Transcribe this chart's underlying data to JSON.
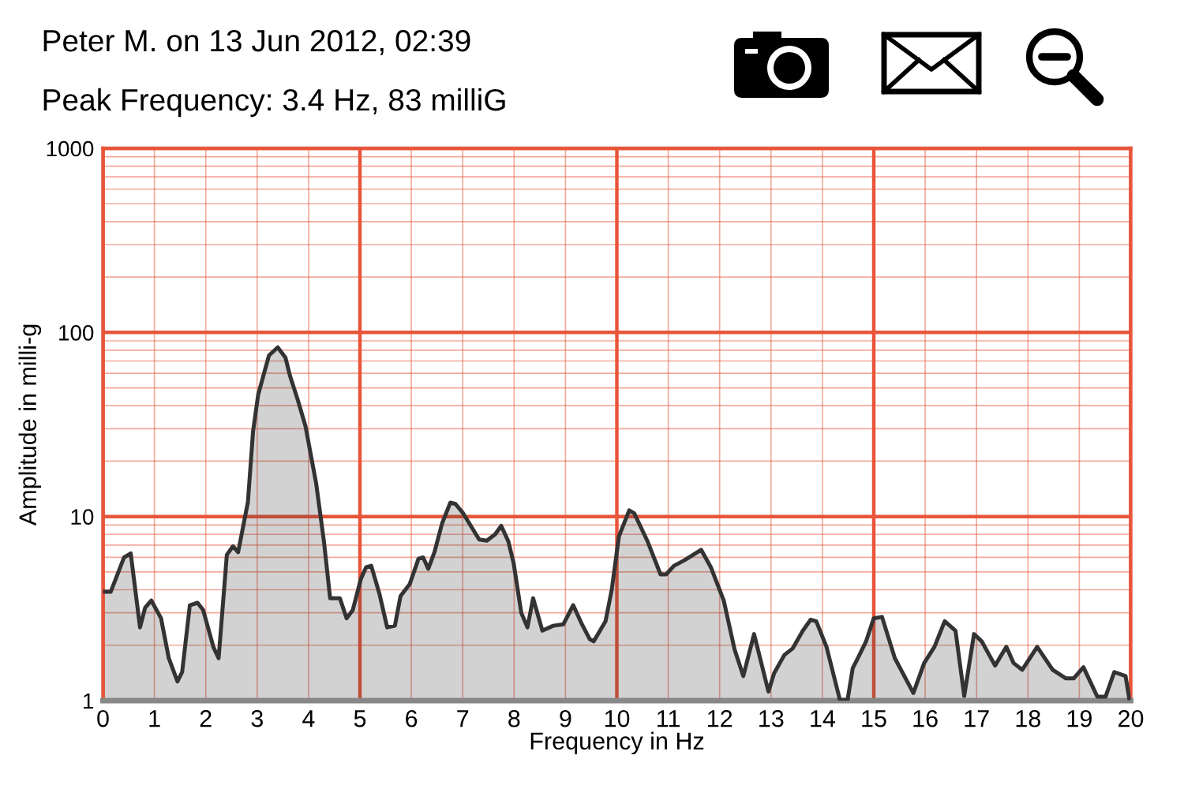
{
  "chart_data": {
    "type": "area",
    "title": "Peter M. on 13 Jun 2012, 02:39",
    "subtitle": "Peak Frequency: 3.4 Hz, 83 milliG",
    "xlabel": "Frequency in Hz",
    "ylabel": "Amplitude in milli-g",
    "series": [
      {
        "color": "#333333",
        "x": [
          0,
          0.15,
          0.41,
          0.54,
          0.72,
          0.82,
          0.94,
          1.13,
          1.28,
          1.45,
          1.54,
          1.69,
          1.84,
          1.95,
          2.15,
          2.25,
          2.41,
          2.53,
          2.63,
          2.82,
          2.92,
          3.02,
          3.23,
          3.4,
          3.55,
          3.64,
          3.79,
          3.94,
          4.15,
          4.3,
          4.42,
          4.61,
          4.74,
          4.86,
          5.02,
          5.12,
          5.22,
          5.38,
          5.53,
          5.68,
          5.79,
          5.97,
          6.14,
          6.23,
          6.33,
          6.45,
          6.6,
          6.76,
          6.86,
          7.01,
          7.32,
          7.47,
          7.63,
          7.75,
          7.89,
          7.99,
          8.14,
          8.26,
          8.37,
          8.55,
          8.76,
          8.96,
          9.15,
          9.32,
          9.47,
          9.55,
          9.78,
          9.9,
          10.04,
          10.24,
          10.34,
          10.6,
          10.85,
          10.96,
          11.11,
          11.32,
          11.64,
          11.83,
          12.08,
          12.29,
          12.46,
          12.67,
          12.95,
          13.06,
          13.26,
          13.42,
          13.62,
          13.77,
          13.88,
          14.08,
          14.34,
          14.49,
          14.59,
          14.69,
          14.85,
          15.0,
          15.16,
          15.41,
          15.77,
          15.98,
          16.18,
          16.38,
          16.59,
          16.76,
          16.95,
          17.1,
          17.36,
          17.58,
          17.72,
          17.89,
          18.18,
          18.48,
          18.74,
          18.89,
          19.08,
          19.35,
          19.51,
          19.68,
          19.9,
          19.97
        ],
        "values": [
          3.9,
          3.9,
          6.0,
          6.3,
          2.5,
          3.2,
          3.5,
          2.8,
          1.7,
          1.27,
          1.43,
          3.3,
          3.4,
          3.1,
          1.95,
          1.7,
          6.2,
          6.9,
          6.4,
          12,
          29,
          46,
          75,
          83,
          73,
          58,
          43,
          31,
          15,
          7.3,
          3.6,
          3.6,
          2.8,
          3.1,
          4.6,
          5.3,
          5.4,
          3.8,
          2.5,
          2.55,
          3.7,
          4.3,
          5.9,
          6.0,
          5.2,
          6.4,
          9.2,
          11.9,
          11.7,
          10.4,
          7.5,
          7.4,
          8.0,
          8.9,
          7.3,
          5.6,
          3.0,
          2.5,
          3.6,
          2.4,
          2.55,
          2.6,
          3.3,
          2.6,
          2.16,
          2.1,
          2.7,
          4.0,
          7.8,
          10.8,
          10.4,
          7.3,
          4.85,
          4.85,
          5.4,
          5.8,
          6.6,
          5.3,
          3.5,
          1.9,
          1.36,
          2.3,
          1.12,
          1.41,
          1.77,
          1.92,
          2.4,
          2.75,
          2.7,
          1.96,
          1.01,
          1.01,
          1.5,
          1.7,
          2.1,
          2.8,
          2.85,
          1.7,
          1.1,
          1.6,
          1.96,
          2.7,
          2.4,
          1.06,
          2.3,
          2.1,
          1.55,
          1.96,
          1.6,
          1.47,
          1.96,
          1.47,
          1.32,
          1.32,
          1.52,
          1.05,
          1.05,
          1.43,
          1.36,
          1.03
        ]
      }
    ],
    "xlim": [
      0,
      20
    ],
    "xticks": [
      0,
      1,
      2,
      3,
      4,
      5,
      6,
      7,
      8,
      9,
      10,
      11,
      12,
      13,
      14,
      15,
      16,
      17,
      18,
      19,
      20
    ],
    "ylim": [
      1,
      1000
    ],
    "yticks": [
      1,
      10,
      100,
      1000
    ],
    "log": "y",
    "grid": true,
    "legend": false
  }
}
